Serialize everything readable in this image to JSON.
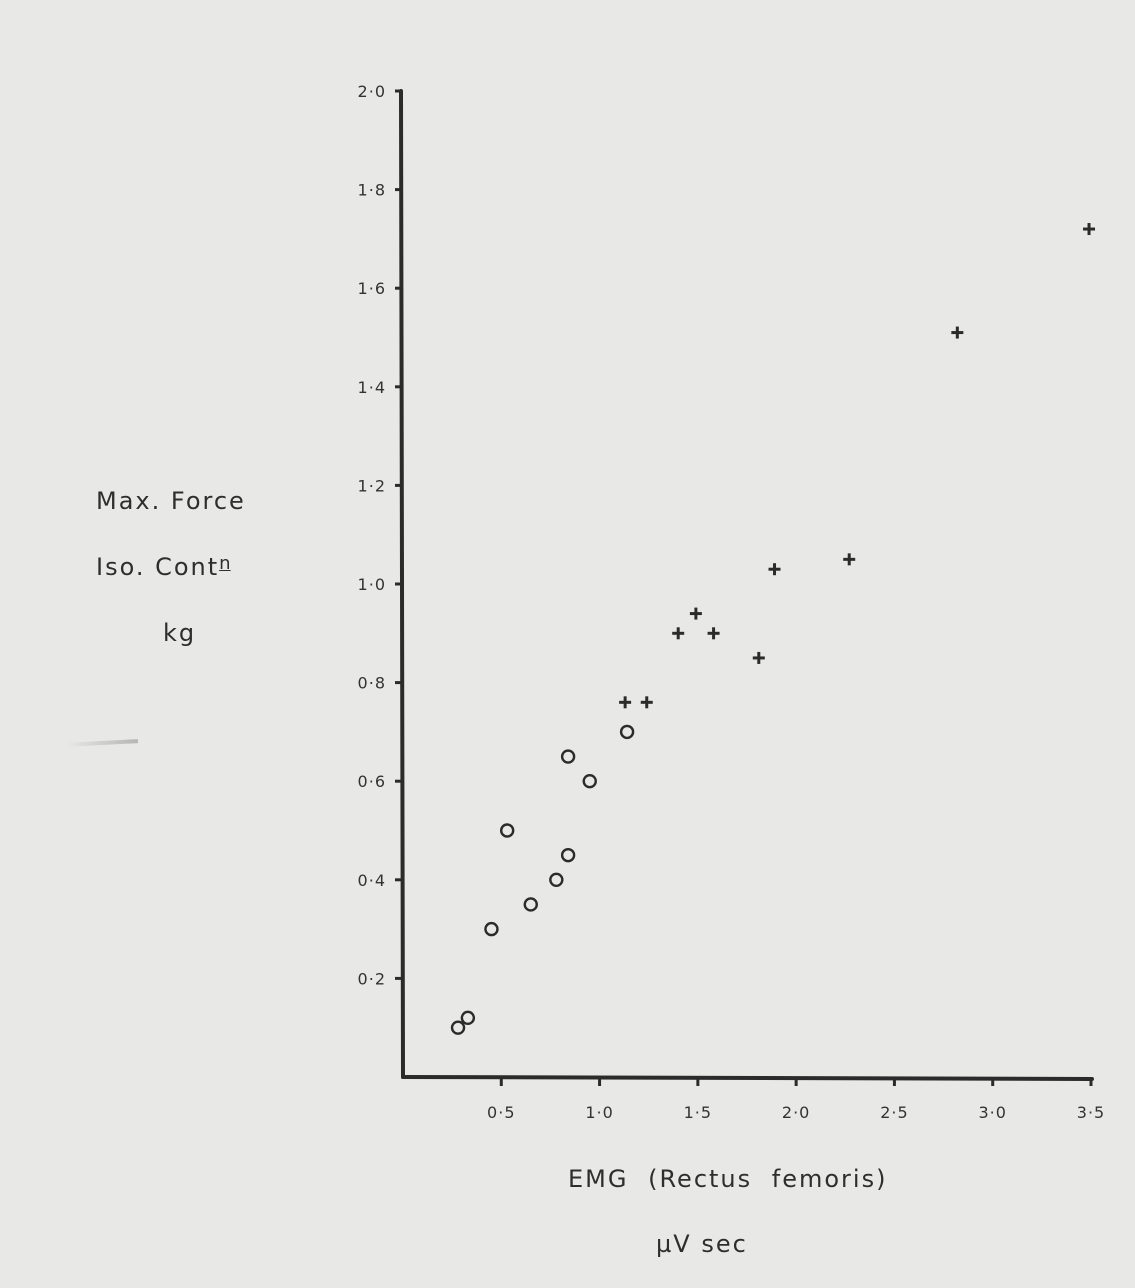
{
  "chart_data": {
    "type": "scatter",
    "title": "",
    "ylabel_lines": [
      "Max.   Force",
      "Iso.   Cont",
      "kg"
    ],
    "ylabel_sup": "n",
    "xlabel": "EMG  (Rectus   femoris)",
    "xlabel_unit": "µV   sec",
    "xlim": [
      0,
      3.5
    ],
    "ylim": [
      0,
      2.0
    ],
    "x_ticks": [
      {
        "value": 0.5,
        "label": "0·5"
      },
      {
        "value": 1.0,
        "label": "1·0"
      },
      {
        "value": 1.5,
        "label": "1·5"
      },
      {
        "value": 2.0,
        "label": "2·0"
      },
      {
        "value": 2.5,
        "label": "2·5"
      },
      {
        "value": 3.0,
        "label": "3·0"
      },
      {
        "value": 3.5,
        "label": "3·5"
      }
    ],
    "y_ticks": [
      {
        "value": 0.2,
        "label": "0·2"
      },
      {
        "value": 0.4,
        "label": "0·4"
      },
      {
        "value": 0.6,
        "label": "0·6"
      },
      {
        "value": 0.8,
        "label": "0·8"
      },
      {
        "value": 1.0,
        "label": "1·0"
      },
      {
        "value": 1.2,
        "label": "1·2"
      },
      {
        "value": 1.4,
        "label": "1·4"
      },
      {
        "value": 1.6,
        "label": "1·6"
      },
      {
        "value": 1.8,
        "label": "1·8"
      },
      {
        "value": 2.0,
        "label": "2·0"
      }
    ],
    "grid": false,
    "series": [
      {
        "marker": "circle",
        "points": [
          {
            "x": 0.28,
            "y": 0.1
          },
          {
            "x": 0.33,
            "y": 0.12
          },
          {
            "x": 0.45,
            "y": 0.3
          },
          {
            "x": 0.53,
            "y": 0.5
          },
          {
            "x": 0.65,
            "y": 0.35
          },
          {
            "x": 0.78,
            "y": 0.4
          },
          {
            "x": 0.84,
            "y": 0.45
          },
          {
            "x": 0.84,
            "y": 0.65
          },
          {
            "x": 0.95,
            "y": 0.6
          },
          {
            "x": 1.14,
            "y": 0.7
          }
        ]
      },
      {
        "marker": "plus",
        "points": [
          {
            "x": 1.13,
            "y": 0.76
          },
          {
            "x": 1.24,
            "y": 0.76
          },
          {
            "x": 1.4,
            "y": 0.9
          },
          {
            "x": 1.49,
            "y": 0.94
          },
          {
            "x": 1.58,
            "y": 0.9
          },
          {
            "x": 1.81,
            "y": 0.85
          },
          {
            "x": 1.89,
            "y": 1.03
          },
          {
            "x": 2.27,
            "y": 1.05
          },
          {
            "x": 2.82,
            "y": 1.51
          },
          {
            "x": 3.49,
            "y": 1.72
          }
        ]
      }
    ]
  }
}
